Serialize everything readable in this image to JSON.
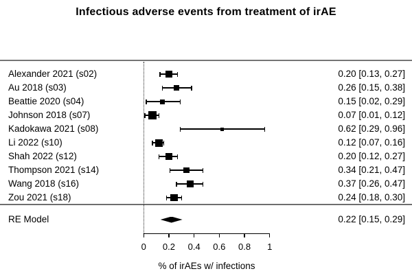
{
  "title": "Infectious adverse events from treatment of irAE",
  "colors": {
    "marker": "#000000",
    "rule_gray": "#757575",
    "text": "#000000"
  },
  "chart_data": {
    "type": "scatter",
    "subtype": "forest_plot",
    "title": "Infectious adverse events from treatment of irAE",
    "xlabel": "% of irAEs w/ infections",
    "ylabel": "",
    "xlim": [
      0,
      1
    ],
    "grid": false,
    "x_ticks": [
      {
        "value": 0,
        "label": "0"
      },
      {
        "value": 0.2,
        "label": "0.2"
      },
      {
        "value": 0.4,
        "label": "0.4"
      },
      {
        "value": 0.6,
        "label": "0.6"
      },
      {
        "value": 0.8,
        "label": "0.8"
      },
      {
        "value": 1,
        "label": "1"
      }
    ],
    "reference_line_x": 0,
    "studies": [
      {
        "label": "Alexander 2021 (s02)",
        "estimate": 0.2,
        "ci_low": 0.13,
        "ci_high": 0.27,
        "annotation": "0.20 [0.13, 0.27]",
        "marker_size": 9.5
      },
      {
        "label": "Au 2018 (s03)",
        "estimate": 0.26,
        "ci_low": 0.15,
        "ci_high": 0.38,
        "annotation": "0.26 [0.15, 0.38]",
        "marker_size": 8
      },
      {
        "label": "Beattie 2020 (s04)",
        "estimate": 0.15,
        "ci_low": 0.02,
        "ci_high": 0.29,
        "annotation": "0.15 [0.02, 0.29]",
        "marker_size": 7
      },
      {
        "label": "Johnson 2018 (s07)",
        "estimate": 0.07,
        "ci_low": 0.01,
        "ci_high": 0.12,
        "annotation": "0.07 [0.01, 0.12]",
        "marker_size": 11.5
      },
      {
        "label": "Kadokawa 2021 (s08)",
        "estimate": 0.62,
        "ci_low": 0.29,
        "ci_high": 0.96,
        "annotation": "0.62 [0.29, 0.96]",
        "marker_size": 5
      },
      {
        "label": "Li 2022 (s10)",
        "estimate": 0.12,
        "ci_low": 0.07,
        "ci_high": 0.16,
        "annotation": "0.12 [0.07, 0.16]",
        "marker_size": 11
      },
      {
        "label": "Shah 2022 (s12)",
        "estimate": 0.2,
        "ci_low": 0.12,
        "ci_high": 0.27,
        "annotation": "0.20 [0.12, 0.27]",
        "marker_size": 10
      },
      {
        "label": "Thompson 2021 (s14)",
        "estimate": 0.34,
        "ci_low": 0.21,
        "ci_high": 0.47,
        "annotation": "0.34 [0.21, 0.47]",
        "marker_size": 8.5
      },
      {
        "label": "Wang 2018 (s16)",
        "estimate": 0.37,
        "ci_low": 0.26,
        "ci_high": 0.47,
        "annotation": "0.37 [0.26, 0.47]",
        "marker_size": 9.5
      },
      {
        "label": "Zou 2021 (s18)",
        "estimate": 0.24,
        "ci_low": 0.18,
        "ci_high": 0.3,
        "annotation": "0.24 [0.18, 0.30]",
        "marker_size": 10.5
      }
    ],
    "summary": {
      "label": "RE Model",
      "estimate": 0.22,
      "ci_low": 0.15,
      "ci_high": 0.29,
      "annotation": "0.22 [0.15, 0.29]"
    }
  }
}
